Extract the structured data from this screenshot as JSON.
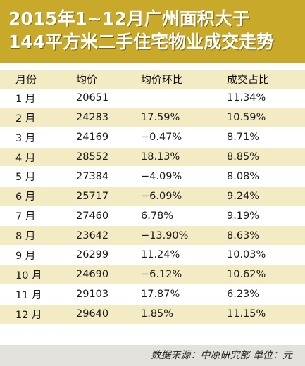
{
  "chart_data": {
    "type": "table",
    "title_lines": [
      "2015年1~12月广州面积大于",
      "144平方米二手住宅物业成交走势"
    ],
    "columns": [
      "月份",
      "均价",
      "均价环比",
      "成交占比"
    ],
    "rows": [
      [
        "1 月",
        "20651",
        "",
        "11.34%"
      ],
      [
        "2 月",
        "24283",
        "17.59%",
        "10.59%"
      ],
      [
        "3 月",
        "24169",
        "−0.47%",
        "8.71%"
      ],
      [
        "4 月",
        "28552",
        "18.13%",
        "8.85%"
      ],
      [
        "5 月",
        "27384",
        "−4.09%",
        "8.08%"
      ],
      [
        "6 月",
        "25717",
        "−6.09%",
        "9.24%"
      ],
      [
        "7 月",
        "27460",
        "6.78%",
        "9.19%"
      ],
      [
        "8 月",
        "23642",
        "−13.90%",
        "8.63%"
      ],
      [
        "9 月",
        "26299",
        "11.24%",
        "10.03%"
      ],
      [
        "10 月",
        "24690",
        "−6.12%",
        "10.62%"
      ],
      [
        "11 月",
        "29103",
        "17.87%",
        "6.23%"
      ],
      [
        "12 月",
        "29640",
        "1.85%",
        "11.15%"
      ]
    ],
    "footer": "数据来源：中原研究部  单位：元"
  },
  "colors": {
    "title_bg": "#c9a92a",
    "row_shade": "#f3ebc4",
    "footer_bg": "#e3e1dc"
  }
}
